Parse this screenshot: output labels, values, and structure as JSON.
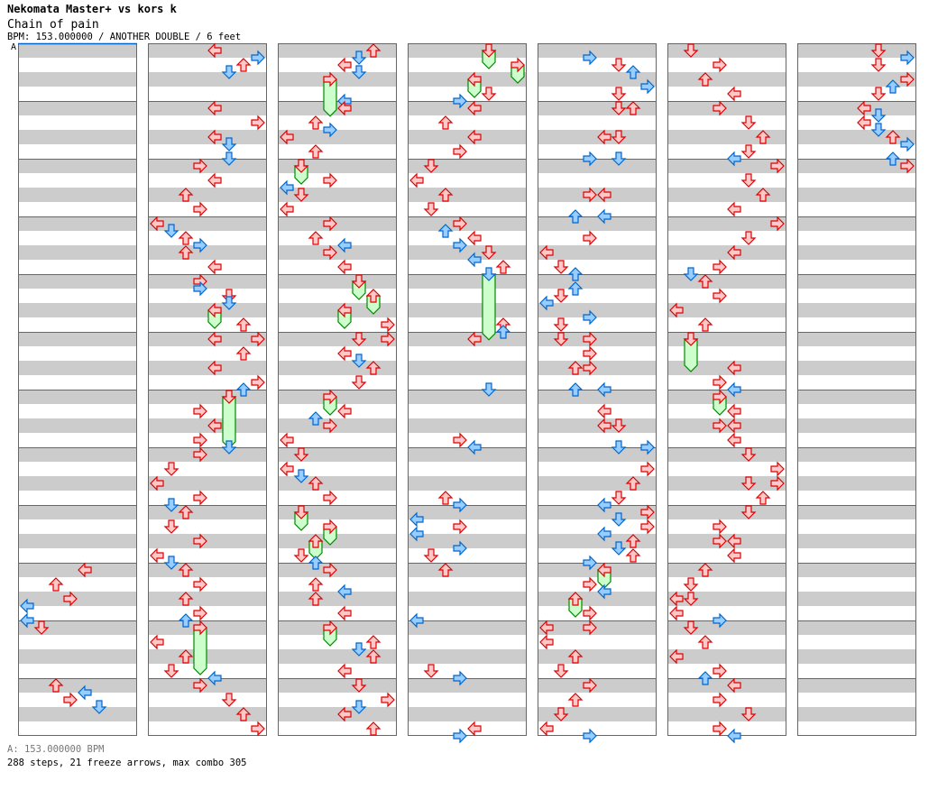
{
  "header": {
    "artist": "Nekomata Master+ vs kors k",
    "title": "Chain of pain",
    "info": "BPM: 153.000000 / ANOTHER DOUBLE / 6 feet",
    "bpm_marker": "A"
  },
  "footer": {
    "bpm": "A: 153.000000 BPM",
    "stats": "288 steps, 21 freeze arrows, max combo 305"
  },
  "colors": {
    "quarter_fill": "#ffc8c8",
    "quarter_stroke": "#dd0000",
    "eighth_fill": "#99ccff",
    "eighth_stroke": "#0066cc",
    "freeze_fill": "#ccffcc",
    "freeze_stroke": "#008800",
    "stripe": "#cccccc",
    "bpm_line": "#0066cc"
  },
  "chart_data": {
    "type": "step-chart",
    "panels": 7,
    "measures_per_panel": 12,
    "beats_per_measure": 4,
    "lanes": [
      "left",
      "down",
      "up",
      "right",
      "left",
      "down",
      "up",
      "right"
    ],
    "notes_format": "[panel, beat, lane]",
    "notes": [
      [
        0,
        36,
        4
      ],
      [
        0,
        37,
        2
      ],
      [
        0,
        38,
        3
      ],
      [
        0,
        38.5,
        0
      ],
      [
        0,
        39.5,
        0
      ],
      [
        0,
        40,
        1
      ],
      [
        0,
        44,
        2
      ],
      [
        0,
        44.5,
        4
      ],
      [
        0,
        45,
        3
      ],
      [
        0,
        45.5,
        5
      ],
      [
        1,
        0,
        4
      ],
      [
        1,
        0.5,
        7
      ],
      [
        1,
        1,
        6
      ],
      [
        1,
        1.5,
        5
      ],
      [
        1,
        4,
        4
      ],
      [
        1,
        5,
        7
      ],
      [
        1,
        6,
        4
      ],
      [
        1,
        6.5,
        5
      ],
      [
        1,
        7.5,
        5
      ],
      [
        1,
        8,
        3
      ],
      [
        1,
        9,
        4
      ],
      [
        1,
        10,
        2
      ],
      [
        1,
        11,
        3
      ],
      [
        1,
        12,
        0
      ],
      [
        1,
        12.5,
        1
      ],
      [
        1,
        13,
        2
      ],
      [
        1,
        13.5,
        3
      ],
      [
        1,
        14,
        2
      ],
      [
        1,
        15,
        4
      ],
      [
        1,
        16,
        3
      ],
      [
        1,
        16.5,
        3
      ],
      [
        1,
        17,
        5
      ],
      [
        1,
        17.5,
        5
      ],
      [
        1,
        19,
        6
      ],
      [
        1,
        20,
        4
      ],
      [
        1,
        20,
        7
      ],
      [
        1,
        21,
        6
      ],
      [
        1,
        22,
        4
      ],
      [
        1,
        23,
        7
      ],
      [
        1,
        23.5,
        6
      ],
      [
        1,
        25,
        3
      ],
      [
        1,
        26,
        4
      ],
      [
        1,
        27,
        3
      ],
      [
        1,
        27.5,
        5
      ],
      [
        1,
        28,
        3
      ],
      [
        1,
        29,
        1
      ],
      [
        1,
        30,
        0
      ],
      [
        1,
        31,
        3
      ],
      [
        1,
        31.5,
        1
      ],
      [
        1,
        32,
        2
      ],
      [
        1,
        33,
        1
      ],
      [
        1,
        34,
        3
      ],
      [
        1,
        35,
        0
      ],
      [
        1,
        35.5,
        1
      ],
      [
        1,
        36,
        2
      ],
      [
        1,
        37,
        3
      ],
      [
        1,
        38,
        2
      ],
      [
        1,
        39,
        3
      ],
      [
        1,
        39.5,
        2
      ],
      [
        1,
        41,
        0
      ],
      [
        1,
        42,
        2
      ],
      [
        1,
        43,
        1
      ],
      [
        1,
        43.5,
        4
      ],
      [
        1,
        44,
        3
      ],
      [
        1,
        45,
        5
      ],
      [
        1,
        46,
        6
      ],
      [
        1,
        47,
        7
      ],
      [
        2,
        0,
        6
      ],
      [
        2,
        0.5,
        5
      ],
      [
        2,
        1,
        4
      ],
      [
        2,
        1.5,
        5
      ],
      [
        2,
        3.5,
        4
      ],
      [
        2,
        4,
        4
      ],
      [
        2,
        5,
        2
      ],
      [
        2,
        5.5,
        3
      ],
      [
        2,
        6,
        0
      ],
      [
        2,
        7,
        2
      ],
      [
        2,
        9,
        3
      ],
      [
        2,
        9.5,
        0
      ],
      [
        2,
        10,
        1
      ],
      [
        2,
        11,
        0
      ],
      [
        2,
        12,
        3
      ],
      [
        2,
        13,
        2
      ],
      [
        2,
        13.5,
        4
      ],
      [
        2,
        14,
        3
      ],
      [
        2,
        15,
        4
      ],
      [
        2,
        19,
        7
      ],
      [
        2,
        20,
        5
      ],
      [
        2,
        20,
        7
      ],
      [
        2,
        21,
        4
      ],
      [
        2,
        21.5,
        5
      ],
      [
        2,
        22,
        6
      ],
      [
        2,
        23,
        5
      ],
      [
        2,
        25,
        4
      ],
      [
        2,
        25.5,
        2
      ],
      [
        2,
        26,
        3
      ],
      [
        2,
        27,
        0
      ],
      [
        2,
        28,
        1
      ],
      [
        2,
        29,
        0
      ],
      [
        2,
        29.5,
        1
      ],
      [
        2,
        30,
        2
      ],
      [
        2,
        31,
        3
      ],
      [
        2,
        35,
        1
      ],
      [
        2,
        35.5,
        2
      ],
      [
        2,
        36,
        3
      ],
      [
        2,
        37,
        2
      ],
      [
        2,
        37.5,
        4
      ],
      [
        2,
        38,
        2
      ],
      [
        2,
        39,
        4
      ],
      [
        2,
        41,
        6
      ],
      [
        2,
        41.5,
        5
      ],
      [
        2,
        42,
        6
      ],
      [
        2,
        43,
        4
      ],
      [
        2,
        44,
        5
      ],
      [
        2,
        45,
        7
      ],
      [
        2,
        45.5,
        5
      ],
      [
        2,
        46,
        4
      ],
      [
        2,
        47,
        6
      ],
      [
        3,
        3,
        5
      ],
      [
        3,
        3.5,
        3
      ],
      [
        3,
        4,
        4
      ],
      [
        3,
        5,
        2
      ],
      [
        3,
        6,
        4
      ],
      [
        3,
        7,
        3
      ],
      [
        3,
        8,
        1
      ],
      [
        3,
        9,
        0
      ],
      [
        3,
        10,
        2
      ],
      [
        3,
        11,
        1
      ],
      [
        3,
        12,
        3
      ],
      [
        3,
        12.5,
        2
      ],
      [
        3,
        13,
        4
      ],
      [
        3,
        13.5,
        3
      ],
      [
        3,
        14,
        5
      ],
      [
        3,
        14.5,
        4
      ],
      [
        3,
        15,
        6
      ],
      [
        3,
        19,
        6
      ],
      [
        3,
        19.5,
        6
      ],
      [
        3,
        20,
        4
      ],
      [
        3,
        23.5,
        5
      ],
      [
        3,
        27,
        3
      ],
      [
        3,
        27.5,
        4
      ],
      [
        3,
        31,
        2
      ],
      [
        3,
        31.5,
        3
      ],
      [
        3,
        32.5,
        0
      ],
      [
        3,
        33,
        3
      ],
      [
        3,
        33.5,
        0
      ],
      [
        3,
        34.5,
        3
      ],
      [
        3,
        35,
        1
      ],
      [
        3,
        36,
        2
      ],
      [
        3,
        39.5,
        0
      ],
      [
        3,
        43,
        1
      ],
      [
        3,
        43.5,
        3
      ],
      [
        3,
        47,
        4
      ],
      [
        3,
        47.5,
        3
      ],
      [
        4,
        0.5,
        3
      ],
      [
        4,
        1,
        5
      ],
      [
        4,
        1.5,
        6
      ],
      [
        4,
        2.5,
        7
      ],
      [
        4,
        3,
        5
      ],
      [
        4,
        4,
        5
      ],
      [
        4,
        4,
        6
      ],
      [
        4,
        6,
        4
      ],
      [
        4,
        6,
        5
      ],
      [
        4,
        7.5,
        3
      ],
      [
        4,
        7.5,
        5
      ],
      [
        4,
        10,
        3
      ],
      [
        4,
        10,
        4
      ],
      [
        4,
        11.5,
        2
      ],
      [
        4,
        11.5,
        4
      ],
      [
        4,
        13,
        3
      ],
      [
        4,
        14,
        0
      ],
      [
        4,
        15,
        1
      ],
      [
        4,
        15.5,
        2
      ],
      [
        4,
        16.5,
        2
      ],
      [
        4,
        17,
        1
      ],
      [
        4,
        17.5,
        0
      ],
      [
        4,
        18.5,
        3
      ],
      [
        4,
        19,
        1
      ],
      [
        4,
        20,
        1
      ],
      [
        4,
        20,
        3
      ],
      [
        4,
        21,
        3
      ],
      [
        4,
        22,
        2
      ],
      [
        4,
        22,
        3
      ],
      [
        4,
        23.5,
        2
      ],
      [
        4,
        23.5,
        4
      ],
      [
        4,
        25,
        4
      ],
      [
        4,
        26,
        4
      ],
      [
        4,
        26,
        5
      ],
      [
        4,
        27.5,
        5
      ],
      [
        4,
        27.5,
        7
      ],
      [
        4,
        29,
        7
      ],
      [
        4,
        30,
        6
      ],
      [
        4,
        31,
        5
      ],
      [
        4,
        31.5,
        4
      ],
      [
        4,
        32,
        7
      ],
      [
        4,
        32.5,
        5
      ],
      [
        4,
        33,
        7
      ],
      [
        4,
        33.5,
        4
      ],
      [
        4,
        34,
        6
      ],
      [
        4,
        34.5,
        5
      ],
      [
        4,
        35,
        6
      ],
      [
        4,
        35.5,
        3
      ],
      [
        4,
        37,
        3
      ],
      [
        4,
        37.5,
        4
      ],
      [
        4,
        39,
        3
      ],
      [
        4,
        40,
        0
      ],
      [
        4,
        40,
        3
      ],
      [
        4,
        41,
        0
      ],
      [
        4,
        42,
        2
      ],
      [
        4,
        43,
        1
      ],
      [
        4,
        44,
        3
      ],
      [
        4,
        45,
        2
      ],
      [
        4,
        46,
        1
      ],
      [
        4,
        47,
        0
      ],
      [
        4,
        47.5,
        3
      ],
      [
        5,
        0,
        1
      ],
      [
        5,
        1,
        3
      ],
      [
        5,
        2,
        2
      ],
      [
        5,
        3,
        4
      ],
      [
        5,
        4,
        3
      ],
      [
        5,
        5,
        5
      ],
      [
        5,
        6,
        6
      ],
      [
        5,
        7,
        5
      ],
      [
        5,
        7.5,
        4
      ],
      [
        5,
        8,
        7
      ],
      [
        5,
        9,
        5
      ],
      [
        5,
        10,
        6
      ],
      [
        5,
        11,
        4
      ],
      [
        5,
        12,
        7
      ],
      [
        5,
        13,
        5
      ],
      [
        5,
        14,
        4
      ],
      [
        5,
        15,
        3
      ],
      [
        5,
        15.5,
        1
      ],
      [
        5,
        16,
        2
      ],
      [
        5,
        17,
        3
      ],
      [
        5,
        18,
        0
      ],
      [
        5,
        19,
        2
      ],
      [
        5,
        22,
        4
      ],
      [
        5,
        23,
        3
      ],
      [
        5,
        23.5,
        4
      ],
      [
        5,
        25,
        4
      ],
      [
        5,
        26,
        3
      ],
      [
        5,
        26,
        4
      ],
      [
        5,
        27,
        4
      ],
      [
        5,
        28,
        5
      ],
      [
        5,
        29,
        7
      ],
      [
        5,
        30,
        5
      ],
      [
        5,
        30,
        7
      ],
      [
        5,
        31,
        6
      ],
      [
        5,
        32,
        5
      ],
      [
        5,
        33,
        3
      ],
      [
        5,
        34,
        3
      ],
      [
        5,
        34,
        4
      ],
      [
        5,
        35,
        4
      ],
      [
        5,
        36,
        2
      ],
      [
        5,
        37,
        1
      ],
      [
        5,
        38,
        0
      ],
      [
        5,
        38,
        1
      ],
      [
        5,
        39,
        0
      ],
      [
        5,
        39.5,
        3
      ],
      [
        5,
        40,
        1
      ],
      [
        5,
        41,
        2
      ],
      [
        5,
        42,
        0
      ],
      [
        5,
        43,
        3
      ],
      [
        5,
        43.5,
        2
      ],
      [
        5,
        44,
        4
      ],
      [
        5,
        45,
        3
      ],
      [
        5,
        46,
        5
      ],
      [
        5,
        47,
        3
      ],
      [
        5,
        47.5,
        4
      ],
      [
        6,
        0,
        5
      ],
      [
        6,
        0.5,
        7
      ],
      [
        6,
        1,
        5
      ],
      [
        6,
        2,
        7
      ],
      [
        6,
        2.5,
        6
      ],
      [
        6,
        3,
        5
      ],
      [
        6,
        4,
        4
      ],
      [
        6,
        4.5,
        5
      ],
      [
        6,
        5,
        4
      ],
      [
        6,
        5.5,
        5
      ],
      [
        6,
        6,
        6
      ],
      [
        6,
        6.5,
        7
      ],
      [
        6,
        7.5,
        6
      ],
      [
        6,
        8,
        7
      ]
    ],
    "freezes_format": "[panel, start_beat, end_beat, lane]",
    "freezes": [
      [
        1,
        18,
        19,
        4
      ],
      [
        1,
        24,
        27.3,
        5
      ],
      [
        1,
        40,
        43,
        3
      ],
      [
        2,
        2,
        4.3,
        3
      ],
      [
        2,
        8,
        9,
        1
      ],
      [
        2,
        16,
        17,
        5
      ],
      [
        2,
        17,
        18,
        6
      ],
      [
        2,
        18,
        19,
        4
      ],
      [
        2,
        24,
        25,
        3
      ],
      [
        2,
        32,
        33,
        1
      ],
      [
        2,
        33,
        34,
        3
      ],
      [
        2,
        34,
        35,
        2
      ],
      [
        2,
        40,
        41,
        3
      ],
      [
        3,
        0,
        1,
        5
      ],
      [
        3,
        1,
        2,
        7
      ],
      [
        3,
        2,
        3,
        4
      ],
      [
        3,
        15.5,
        19.8,
        5
      ],
      [
        4,
        36,
        37,
        4
      ],
      [
        4,
        38,
        39,
        2
      ],
      [
        5,
        20,
        22,
        1
      ],
      [
        5,
        24,
        25,
        3
      ]
    ]
  }
}
